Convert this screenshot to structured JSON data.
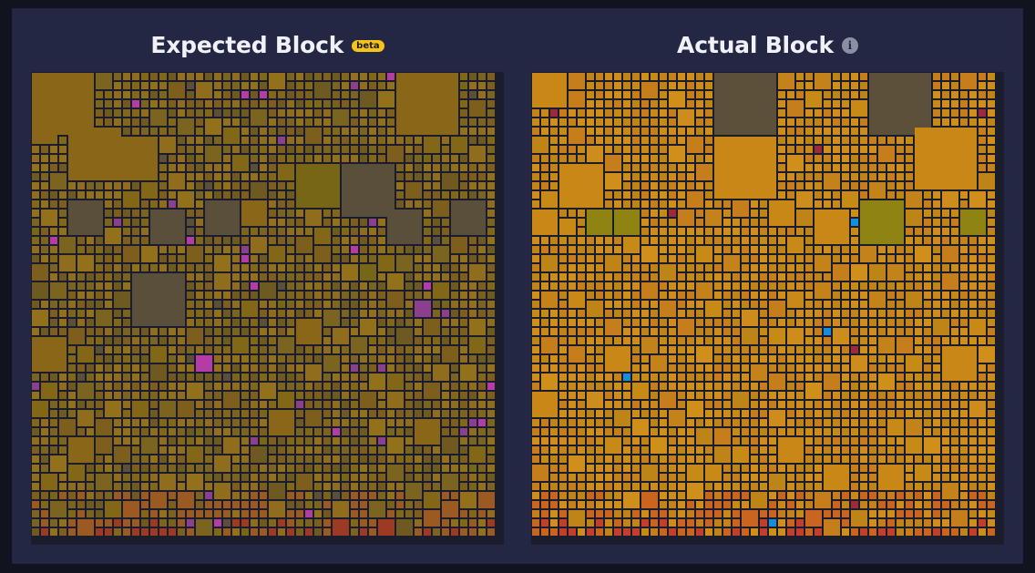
{
  "expected": {
    "title": "Expected Block",
    "badge": "beta",
    "palette": {
      "base": "#8a6618",
      "variants": [
        "#7d5e1c",
        "#93701a",
        "#6e5a20",
        "#826717",
        "#8f6d1d",
        "#7a6420"
      ],
      "large_gray": "#5a4f3b",
      "olive": "#786617",
      "purple": "#8a3f8f",
      "magenta": "#b53ca6",
      "bottom_orange": "#9a5a22",
      "bottom_red": "#9c3a24",
      "background": "#1b1d2c"
    }
  },
  "actual": {
    "title": "Actual Block",
    "info_icon": "info-icon",
    "palette": {
      "base": "#c98816",
      "variants": [
        "#c88a17",
        "#d08f1a",
        "#c4821a",
        "#bf8418",
        "#cd8c1c",
        "#c67e1c"
      ],
      "large_gray": "#5c503b",
      "olive": "#8f8412",
      "bottom_orange": "#c9651f",
      "bottom_red": "#c2402b",
      "accent_red": "#9c2a3a",
      "accent_blue": "#1590d8",
      "background": "#1b1d2c"
    }
  }
}
